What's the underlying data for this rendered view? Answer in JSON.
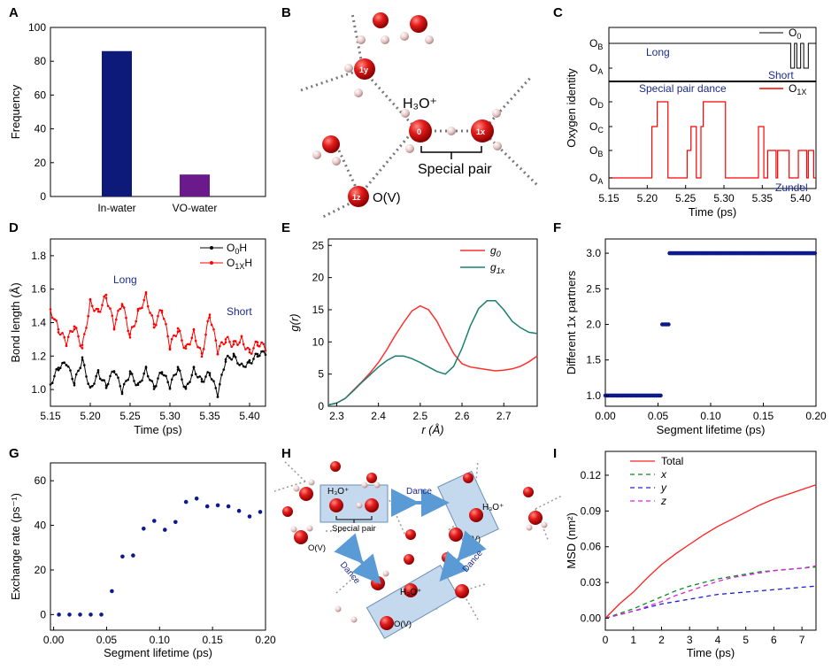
{
  "panels": {
    "A": {
      "letter": "A"
    },
    "B": {
      "letter": "B",
      "h3o": "H₃O⁺",
      "special_pair": "Special pair",
      "ov": "O(V)",
      "labels": {
        "o0": "0",
        "o1x": "1x",
        "o1y": "1y",
        "o1z": "1z"
      }
    },
    "C": {
      "letter": "C",
      "ylabel": "Oxygen identity",
      "xlabel": "Time (ps)",
      "upper_labels": [
        "O_B",
        "O_A"
      ],
      "lower_labels": [
        "O_D",
        "O_C",
        "O_B",
        "O_A"
      ],
      "xticks": [
        "5.15",
        "5.20",
        "5.25",
        "5.30",
        "5.35",
        "5.40"
      ],
      "legend_o0": "O0",
      "legend_o1x": "O1X",
      "long": "Long",
      "short": "Short",
      "dance": "Special pair dance",
      "zundel": "Zundel"
    },
    "D": {
      "letter": "D",
      "long": "Long",
      "short": "Short"
    },
    "E": {
      "letter": "E"
    },
    "F": {
      "letter": "F"
    },
    "G": {
      "letter": "G"
    },
    "H": {
      "letter": "H",
      "h3o": "H₃O⁺",
      "special_pair": "Special pair",
      "ov": "O(V)",
      "dance": "Dance"
    },
    "I": {
      "letter": "I"
    }
  },
  "chart_data": [
    {
      "panel": "A",
      "type": "bar",
      "categories": [
        "In-water",
        "VO-water"
      ],
      "values": [
        86,
        13
      ],
      "colors": [
        "#0d1a7a",
        "#6a1a8a"
      ],
      "ylabel": "Frequency",
      "ylim": [
        0,
        100
      ],
      "yticks": [
        0,
        20,
        40,
        60,
        80,
        100
      ]
    },
    {
      "panel": "C",
      "type": "line",
      "xlabel": "Time (ps)",
      "xlim": [
        5.15,
        5.42
      ],
      "xticks": [
        5.15,
        5.2,
        5.25,
        5.3,
        5.35,
        5.4
      ],
      "series": [
        {
          "name": "O0",
          "color": "#000000",
          "panel_part": "upper",
          "levels": [
            "O_A",
            "O_B"
          ],
          "steps": [
            [
              5.15,
              1
            ],
            [
              5.387,
              0
            ],
            [
              5.392,
              1
            ],
            [
              5.395,
              0
            ],
            [
              5.4,
              1
            ],
            [
              5.404,
              0
            ],
            [
              5.41,
              1
            ],
            [
              5.42,
              1
            ]
          ]
        },
        {
          "name": "O1X",
          "color": "#ff0000",
          "panel_part": "lower",
          "levels": [
            "O_A",
            "O_B",
            "O_C",
            "O_D"
          ],
          "steps": [
            [
              5.15,
              0
            ],
            [
              5.203,
              0
            ],
            [
              5.206,
              2
            ],
            [
              5.213,
              3
            ],
            [
              5.225,
              3
            ],
            [
              5.227,
              0
            ],
            [
              5.25,
              0
            ],
            [
              5.252,
              1
            ],
            [
              5.257,
              2
            ],
            [
              5.262,
              2
            ],
            [
              5.264,
              0
            ],
            [
              5.268,
              0
            ],
            [
              5.27,
              2
            ],
            [
              5.273,
              3
            ],
            [
              5.3,
              3
            ],
            [
              5.302,
              0
            ],
            [
              5.343,
              0
            ],
            [
              5.345,
              2
            ],
            [
              5.35,
              2
            ],
            [
              5.352,
              0
            ],
            [
              5.355,
              0
            ],
            [
              5.357,
              1
            ],
            [
              5.365,
              1
            ],
            [
              5.368,
              0
            ],
            [
              5.37,
              1
            ],
            [
              5.383,
              1
            ],
            [
              5.385,
              0
            ],
            [
              5.395,
              0
            ],
            [
              5.397,
              1
            ],
            [
              5.405,
              1
            ],
            [
              5.408,
              0
            ],
            [
              5.41,
              1
            ],
            [
              5.415,
              1
            ],
            [
              5.417,
              0
            ],
            [
              5.42,
              0
            ]
          ]
        }
      ]
    },
    {
      "panel": "D",
      "type": "line",
      "xlabel": "Time (ps)",
      "ylabel": "Bond length (Å)",
      "xlim": [
        5.15,
        5.42
      ],
      "ylim": [
        0.9,
        1.9
      ],
      "xticks": [
        5.15,
        5.2,
        5.25,
        5.3,
        5.35,
        5.4
      ],
      "yticks": [
        1.0,
        1.2,
        1.4,
        1.6,
        1.8
      ],
      "series": [
        {
          "name": "O0H",
          "color": "#000000",
          "x": [
            5.15,
            5.16,
            5.17,
            5.18,
            5.19,
            5.2,
            5.21,
            5.22,
            5.23,
            5.24,
            5.25,
            5.26,
            5.27,
            5.28,
            5.29,
            5.3,
            5.31,
            5.32,
            5.33,
            5.34,
            5.35,
            5.36,
            5.37,
            5.38,
            5.39,
            5.4,
            5.41,
            5.42
          ],
          "y": [
            1.03,
            1.13,
            1.16,
            1.04,
            1.18,
            1.0,
            1.1,
            1.02,
            1.12,
            0.99,
            1.1,
            1.02,
            1.12,
            1.01,
            1.11,
            1.02,
            1.13,
            1.0,
            1.12,
            1.05,
            1.1,
            0.97,
            1.18,
            1.2,
            1.14,
            1.16,
            1.21,
            1.22
          ]
        },
        {
          "name": "O1XH",
          "color": "#ff0000",
          "x": [
            5.15,
            5.16,
            5.17,
            5.18,
            5.19,
            5.2,
            5.21,
            5.22,
            5.23,
            5.24,
            5.25,
            5.26,
            5.27,
            5.28,
            5.29,
            5.3,
            5.31,
            5.32,
            5.33,
            5.34,
            5.35,
            5.36,
            5.37,
            5.38,
            5.39,
            5.4,
            5.41,
            5.42
          ],
          "y": [
            1.48,
            1.36,
            1.28,
            1.38,
            1.25,
            1.52,
            1.46,
            1.56,
            1.38,
            1.52,
            1.32,
            1.46,
            1.56,
            1.38,
            1.48,
            1.26,
            1.36,
            1.24,
            1.34,
            1.2,
            1.45,
            1.23,
            1.3,
            1.27,
            1.3,
            1.22,
            1.28,
            1.25
          ]
        }
      ]
    },
    {
      "panel": "E",
      "type": "line",
      "xlabel": "r (Å)",
      "ylabel": "g(r)",
      "xlim": [
        2.28,
        2.78
      ],
      "ylim": [
        0,
        26
      ],
      "xticks": [
        2.3,
        2.4,
        2.5,
        2.6,
        2.7
      ],
      "yticks": [
        0,
        5,
        10,
        15,
        20,
        25
      ],
      "series": [
        {
          "name": "g0",
          "color": "#ff3030",
          "x": [
            2.28,
            2.3,
            2.32,
            2.34,
            2.36,
            2.38,
            2.4,
            2.42,
            2.44,
            2.46,
            2.48,
            2.5,
            2.52,
            2.54,
            2.56,
            2.58,
            2.6,
            2.62,
            2.64,
            2.66,
            2.68,
            2.7,
            2.72,
            2.74,
            2.76,
            2.78
          ],
          "y": [
            0.2,
            0.5,
            1.2,
            2.5,
            3.8,
            5.2,
            6.8,
            8.8,
            11.0,
            13.0,
            14.8,
            15.6,
            15.0,
            13.2,
            10.6,
            8.2,
            6.6,
            6.1,
            5.9,
            5.7,
            5.5,
            5.6,
            5.8,
            6.2,
            6.9,
            7.8
          ]
        },
        {
          "name": "g1x",
          "color": "#1a8070",
          "x": [
            2.28,
            2.3,
            2.32,
            2.34,
            2.36,
            2.38,
            2.4,
            2.42,
            2.44,
            2.46,
            2.48,
            2.5,
            2.52,
            2.54,
            2.56,
            2.58,
            2.6,
            2.62,
            2.64,
            2.66,
            2.68,
            2.7,
            2.72,
            2.74,
            2.76,
            2.78
          ],
          "y": [
            0.2,
            0.5,
            1.2,
            2.4,
            3.7,
            4.9,
            6.1,
            7.1,
            7.8,
            7.8,
            7.4,
            6.8,
            6.1,
            5.4,
            5.0,
            6.2,
            9.0,
            12.5,
            15.2,
            16.4,
            16.4,
            15.0,
            13.2,
            12.2,
            11.5,
            11.3
          ]
        }
      ]
    },
    {
      "panel": "F",
      "type": "scatter",
      "xlabel": "Segment lifetime (ps)",
      "ylabel": "Different 1x partners",
      "xlim": [
        0.0,
        0.2
      ],
      "ylim": [
        0.85,
        3.2
      ],
      "xticks": [
        0.0,
        0.05,
        0.1,
        0.15,
        0.2
      ],
      "yticks": [
        1.0,
        1.5,
        2.0,
        2.5,
        3.0
      ],
      "runs": [
        {
          "x0": 0.0,
          "x1": 0.053,
          "y": 1.0
        },
        {
          "x0": 0.054,
          "x1": 0.06,
          "y": 2.0
        },
        {
          "x0": 0.061,
          "x1": 0.2,
          "y": 3.0
        }
      ]
    },
    {
      "panel": "G",
      "type": "scatter",
      "xlabel": "Segment lifetime (ps)",
      "ylabel": "Exchange rate (ps⁻¹)",
      "xlim": [
        -0.003,
        0.2
      ],
      "ylim": [
        -7,
        68
      ],
      "xticks": [
        0.0,
        0.05,
        0.1,
        0.15,
        0.2
      ],
      "yticks": [
        0,
        20,
        40,
        60
      ],
      "x": [
        0.005,
        0.015,
        0.025,
        0.035,
        0.045,
        0.055,
        0.065,
        0.075,
        0.085,
        0.095,
        0.105,
        0.115,
        0.125,
        0.135,
        0.145,
        0.155,
        0.165,
        0.175,
        0.185,
        0.195
      ],
      "y": [
        0,
        0,
        0,
        0,
        0,
        10.5,
        26,
        26.5,
        38.5,
        42,
        38,
        41.5,
        50.5,
        52,
        48.5,
        49,
        48.5,
        46.5,
        44,
        46
      ]
    },
    {
      "panel": "I",
      "type": "line",
      "xlabel": "Time (ps)",
      "ylabel": "MSD (nm²)",
      "xlim": [
        0,
        7.5
      ],
      "ylim": [
        -0.01,
        0.14
      ],
      "xticks": [
        0,
        1,
        2,
        3,
        4,
        5,
        6,
        7
      ],
      "yticks": [
        0.0,
        0.03,
        0.06,
        0.09,
        0.12
      ],
      "series": [
        {
          "name": "Total",
          "color": "#ff2020",
          "dash": "",
          "x": [
            0,
            0.5,
            1,
            1.5,
            2,
            2.5,
            3,
            3.5,
            4,
            4.5,
            5,
            5.5,
            6,
            6.5,
            7,
            7.5
          ],
          "y": [
            0,
            0.012,
            0.022,
            0.034,
            0.045,
            0.054,
            0.062,
            0.07,
            0.077,
            0.083,
            0.089,
            0.095,
            0.1,
            0.104,
            0.108,
            0.112
          ]
        },
        {
          "name": "x",
          "color": "#0a8a1e",
          "dash": "5,4",
          "x": [
            0,
            0.5,
            1,
            1.5,
            2,
            2.5,
            3,
            3.5,
            4,
            4.5,
            5,
            5.5,
            6,
            6.5,
            7,
            7.5
          ],
          "y": [
            0,
            0.004,
            0.008,
            0.013,
            0.018,
            0.023,
            0.027,
            0.03,
            0.033,
            0.035,
            0.037,
            0.039,
            0.04,
            0.041,
            0.042,
            0.043
          ]
        },
        {
          "name": "y",
          "color": "#2020d0",
          "dash": "5,4",
          "x": [
            0,
            0.5,
            1,
            1.5,
            2,
            2.5,
            3,
            3.5,
            4,
            4.5,
            5,
            5.5,
            6,
            6.5,
            7,
            7.5
          ],
          "y": [
            0,
            0.003,
            0.006,
            0.009,
            0.012,
            0.014,
            0.016,
            0.018,
            0.02,
            0.021,
            0.022,
            0.023,
            0.024,
            0.025,
            0.026,
            0.027
          ]
        },
        {
          "name": "z",
          "color": "#e020e0",
          "dash": "5,4",
          "x": [
            0,
            0.5,
            1,
            1.5,
            2,
            2.5,
            3,
            3.5,
            4,
            4.5,
            5,
            5.5,
            6,
            6.5,
            7,
            7.5
          ],
          "y": [
            0,
            0.003,
            0.006,
            0.01,
            0.014,
            0.019,
            0.023,
            0.027,
            0.031,
            0.034,
            0.036,
            0.038,
            0.04,
            0.041,
            0.042,
            0.044
          ]
        }
      ]
    }
  ]
}
